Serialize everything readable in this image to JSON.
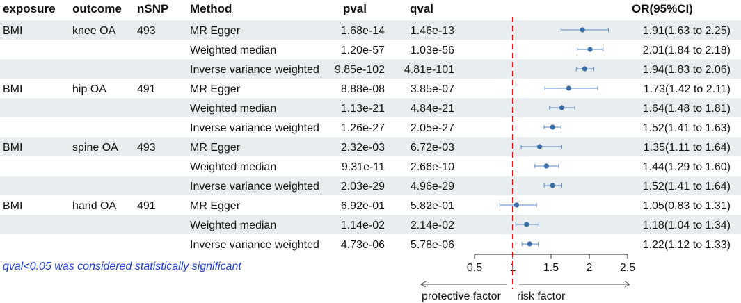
{
  "columns": {
    "exposure": "exposure",
    "outcome": "outcome",
    "nsnp": "nSNP",
    "method": "Method",
    "pval": "pval",
    "qval": "qval",
    "or": "OR(95%CI)"
  },
  "note": "qval<0.05 was considered statistically significant",
  "direction_labels": {
    "left": "protective factor",
    "right": "risk factor"
  },
  "colors": {
    "band": "#e8eef0",
    "point": "#3a6ea8",
    "ci": "#5b8ac0",
    "ref_line": "#e02020",
    "note": "#1f3fd6"
  },
  "chart_data": {
    "type": "forest",
    "xlim": [
      0.5,
      2.5
    ],
    "ticks": [
      0.5,
      1,
      1.5,
      2,
      2.5
    ],
    "tick_labels": [
      "0.5",
      "1",
      "1.5",
      "2",
      "2.5"
    ],
    "ref_value": 1,
    "rows": [
      {
        "exposure": "BMI",
        "outcome": "knee OA",
        "nsnp": "493",
        "method": "MR Egger",
        "pval": "1.68e-14",
        "qval": "1.46e-13",
        "or": 1.91,
        "lo": 1.63,
        "hi": 2.25,
        "or_text": "1.91(1.63 to 2.25)"
      },
      {
        "exposure": "",
        "outcome": "",
        "nsnp": "",
        "method": "Weighted median",
        "pval": "1.20e-57",
        "qval": "1.03e-56",
        "or": 2.01,
        "lo": 1.84,
        "hi": 2.18,
        "or_text": "2.01(1.84 to 2.18)"
      },
      {
        "exposure": "",
        "outcome": "",
        "nsnp": "",
        "method": "Inverse variance weighted",
        "pval": "9.85e-102",
        "qval": "4.81e-101",
        "or": 1.94,
        "lo": 1.83,
        "hi": 2.06,
        "or_text": "1.94(1.83 to 2.06)"
      },
      {
        "exposure": "BMI",
        "outcome": "hip OA",
        "nsnp": "491",
        "method": "MR Egger",
        "pval": "8.88e-08",
        "qval": "3.85e-07",
        "or": 1.73,
        "lo": 1.42,
        "hi": 2.11,
        "or_text": "1.73(1.42 to 2.11)"
      },
      {
        "exposure": "",
        "outcome": "",
        "nsnp": "",
        "method": "Weighted median",
        "pval": "1.13e-21",
        "qval": "4.84e-21",
        "or": 1.64,
        "lo": 1.48,
        "hi": 1.81,
        "or_text": "1.64(1.48 to 1.81)"
      },
      {
        "exposure": "",
        "outcome": "",
        "nsnp": "",
        "method": "Inverse variance weighted",
        "pval": "1.26e-27",
        "qval": "2.05e-27",
        "or": 1.52,
        "lo": 1.41,
        "hi": 1.63,
        "or_text": "1.52(1.41 to 1.63)"
      },
      {
        "exposure": "BMI",
        "outcome": "spine OA",
        "nsnp": "493",
        "method": "MR Egger",
        "pval": "2.32e-03",
        "qval": "6.72e-03",
        "or": 1.35,
        "lo": 1.11,
        "hi": 1.64,
        "or_text": "1.35(1.11 to 1.64)"
      },
      {
        "exposure": "",
        "outcome": "",
        "nsnp": "",
        "method": "Weighted median",
        "pval": "9.31e-11",
        "qval": "2.66e-10",
        "or": 1.44,
        "lo": 1.29,
        "hi": 1.6,
        "or_text": "1.44(1.29 to 1.60)"
      },
      {
        "exposure": "",
        "outcome": "",
        "nsnp": "",
        "method": "Inverse variance weighted",
        "pval": "2.03e-29",
        "qval": "4.96e-29",
        "or": 1.52,
        "lo": 1.41,
        "hi": 1.64,
        "or_text": "1.52(1.41 to 1.64)"
      },
      {
        "exposure": "BMI",
        "outcome": "hand OA",
        "nsnp": "491",
        "method": "MR Egger",
        "pval": "6.92e-01",
        "qval": "5.82e-01",
        "or": 1.05,
        "lo": 0.83,
        "hi": 1.31,
        "or_text": "1.05(0.83 to 1.31)"
      },
      {
        "exposure": "",
        "outcome": "",
        "nsnp": "",
        "method": "Weighted median",
        "pval": "1.14e-02",
        "qval": "2.14e-02",
        "or": 1.18,
        "lo": 1.04,
        "hi": 1.34,
        "or_text": "1.18(1.04 to 1.34)"
      },
      {
        "exposure": "",
        "outcome": "",
        "nsnp": "",
        "method": "Inverse variance weighted",
        "pval": "4.73e-06",
        "qval": "5.78e-06",
        "or": 1.22,
        "lo": 1.12,
        "hi": 1.33,
        "or_text": "1.22(1.12 to 1.33)"
      }
    ]
  }
}
